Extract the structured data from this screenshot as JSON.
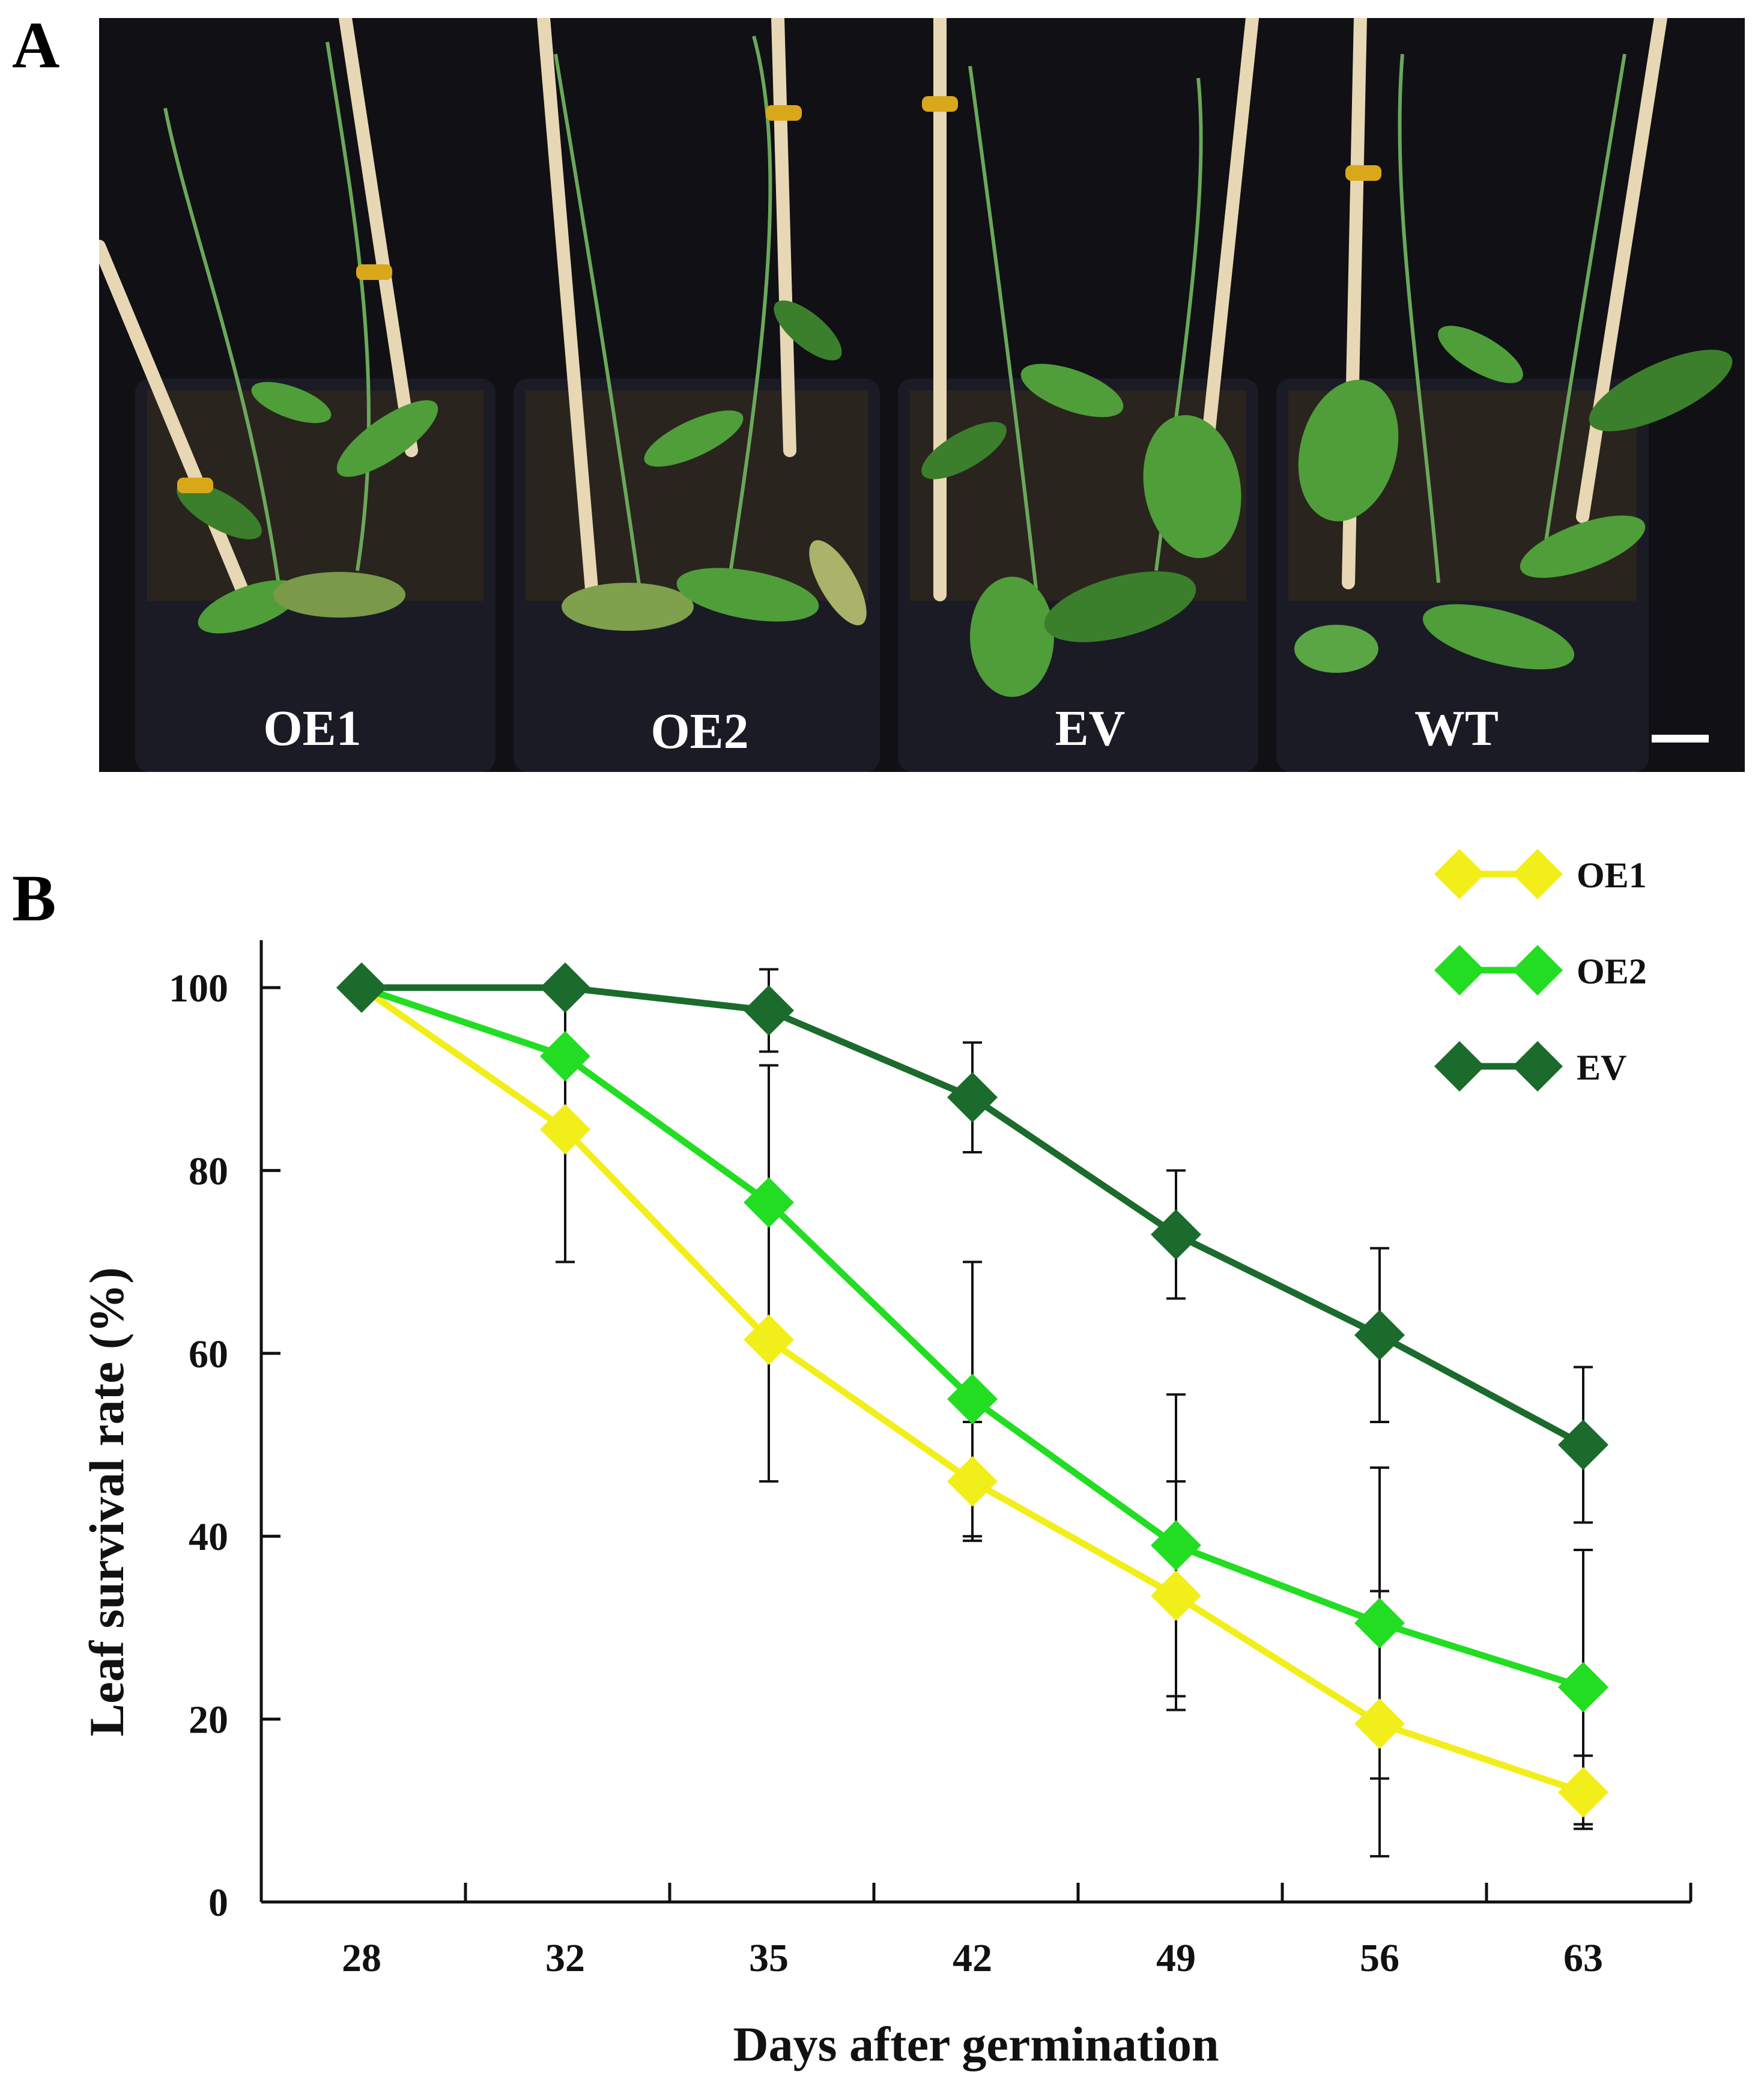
{
  "panels": {
    "a_label": "A",
    "b_label": "B"
  },
  "photo": {
    "pot_labels": [
      "OE1",
      "OE2",
      "EV",
      "WT"
    ],
    "colors": {
      "background": "#101015",
      "pot": "#1b1b26",
      "soil": "#2a241e",
      "leaf": "#4f9e3a",
      "leaf_dark": "#3b7f2c",
      "stake": "#e8d7b4"
    }
  },
  "chart_data": {
    "type": "line",
    "xlabel": "Days after germination",
    "ylabel": "Leaf survival rate (%)",
    "categories": [
      "28",
      "32",
      "35",
      "42",
      "49",
      "56",
      "63"
    ],
    "ylim": [
      0,
      100
    ],
    "yticks": [
      0,
      20,
      40,
      60,
      80,
      100
    ],
    "legend_position": "top-right",
    "marker": "diamond",
    "series": [
      {
        "name": "OE1",
        "color": "#f2ee1a",
        "values": [
          100,
          84.5,
          61.5,
          46,
          33.5,
          19.5,
          12
        ],
        "error": [
          0,
          14.5,
          15.5,
          6.5,
          12.5,
          14.5,
          4
        ]
      },
      {
        "name": "OE2",
        "color": "#22dd22",
        "values": [
          100,
          92.5,
          76.5,
          55,
          39,
          30.5,
          23.5
        ],
        "error": [
          0,
          0,
          15,
          15,
          16.5,
          17,
          15
        ]
      },
      {
        "name": "EV",
        "color": "#1b6b2c",
        "values": [
          100,
          100,
          97.5,
          88,
          73,
          62,
          50
        ],
        "error": [
          0,
          0,
          4.5,
          6,
          7,
          9.5,
          8.5
        ]
      }
    ]
  }
}
